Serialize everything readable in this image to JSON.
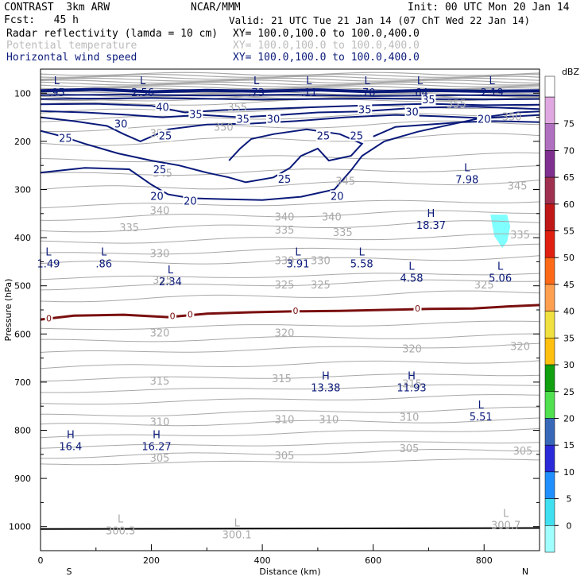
{
  "header": {
    "left1": "CONTRAST  3km ARW",
    "left2": "Fcst:   45 h",
    "center1": "NCAR/MMM",
    "right1": "Init: 00 UTC Mon 20 Jan 14",
    "valid": "Valid: 21 UTC Tue 21 Jan 14 (07 ChT Wed 22 Jan 14)",
    "fields": [
      {
        "name": "Radar reflectivity (lamda = 10 cm)",
        "xy": "XY= 100.0,100.0 to 100.0,400.0",
        "color": "#000000"
      },
      {
        "name": "Potential temperature",
        "xy": "XY= 100.0,100.0 to 100.0,400.0",
        "color": "#bbbbbb"
      },
      {
        "name": "Horizontal wind speed",
        "xy": "XY= 100.0,100.0 to 100.0,400.0",
        "color": "#0a1a7a"
      }
    ]
  },
  "colors": {
    "theta": "#a8a8a8",
    "wind": "#0a1a7a",
    "zero_line": "#7a0f0f",
    "echo": "#80ffff"
  },
  "chart_data": {
    "type": "contour-cross-section",
    "xlabel": "Distance (km)",
    "ylabel": "Pressure (hPa)",
    "xlim": [
      0,
      900
    ],
    "ylim": [
      1050,
      50
    ],
    "xticks": [
      "0",
      "200",
      "400",
      "600",
      "800"
    ],
    "yticks": [
      "100",
      "200",
      "300",
      "400",
      "500",
      "600",
      "700",
      "800",
      "900",
      "1000"
    ],
    "x_end_labels": {
      "left": "S",
      "right": "N"
    },
    "potential_temperature": {
      "label_annotations": [
        {
          "text": "350",
          "x": 330,
          "p": 170
        },
        {
          "text": "350",
          "x": 215,
          "p": 183
        },
        {
          "text": "350",
          "x": 850,
          "p": 148
        },
        {
          "text": "355",
          "x": 355,
          "p": 128
        },
        {
          "text": "355",
          "x": 750,
          "p": 122
        },
        {
          "text": "345",
          "x": 220,
          "p": 265
        },
        {
          "text": "345",
          "x": 550,
          "p": 282
        },
        {
          "text": "345",
          "x": 860,
          "p": 292
        },
        {
          "text": "340",
          "x": 215,
          "p": 343
        },
        {
          "text": "340",
          "x": 440,
          "p": 356
        },
        {
          "text": "340",
          "x": 525,
          "p": 356
        },
        {
          "text": "335",
          "x": 160,
          "p": 378
        },
        {
          "text": "335",
          "x": 440,
          "p": 383
        },
        {
          "text": "335",
          "x": 545,
          "p": 388
        },
        {
          "text": "335",
          "x": 865,
          "p": 393
        },
        {
          "text": "330",
          "x": 215,
          "p": 432
        },
        {
          "text": "330",
          "x": 440,
          "p": 447
        },
        {
          "text": "330",
          "x": 505,
          "p": 447
        },
        {
          "text": "325",
          "x": 220,
          "p": 487
        },
        {
          "text": "325",
          "x": 440,
          "p": 497
        },
        {
          "text": "325",
          "x": 505,
          "p": 497
        },
        {
          "text": "325",
          "x": 800,
          "p": 497
        },
        {
          "text": "320",
          "x": 215,
          "p": 597
        },
        {
          "text": "320",
          "x": 440,
          "p": 597
        },
        {
          "text": "320",
          "x": 670,
          "p": 630
        },
        {
          "text": "320",
          "x": 865,
          "p": 625
        },
        {
          "text": "315",
          "x": 215,
          "p": 697
        },
        {
          "text": "315",
          "x": 435,
          "p": 692
        },
        {
          "text": "315",
          "x": 670,
          "p": 703
        },
        {
          "text": "310",
          "x": 215,
          "p": 782
        },
        {
          "text": "310",
          "x": 440,
          "p": 777
        },
        {
          "text": "310",
          "x": 520,
          "p": 777
        },
        {
          "text": "310",
          "x": 665,
          "p": 772
        },
        {
          "text": "305",
          "x": 215,
          "p": 857
        },
        {
          "text": "305",
          "x": 440,
          "p": 852
        },
        {
          "text": "305",
          "x": 665,
          "p": 837
        },
        {
          "text": "305",
          "x": 870,
          "p": 842
        }
      ]
    },
    "wind_speed": {
      "label_annotations": [
        {
          "text": "40",
          "x": 220,
          "p": 128
        },
        {
          "text": "35",
          "x": 280,
          "p": 143
        },
        {
          "text": "35",
          "x": 365,
          "p": 153
        },
        {
          "text": "35",
          "x": 585,
          "p": 133
        },
        {
          "text": "35",
          "x": 700,
          "p": 113
        },
        {
          "text": "30",
          "x": 145,
          "p": 163
        },
        {
          "text": "30",
          "x": 420,
          "p": 153
        },
        {
          "text": "30",
          "x": 670,
          "p": 138
        },
        {
          "text": "25",
          "x": 45,
          "p": 193
        },
        {
          "text": "25",
          "x": 225,
          "p": 188
        },
        {
          "text": "25",
          "x": 215,
          "p": 258
        },
        {
          "text": "25",
          "x": 510,
          "p": 188
        },
        {
          "text": "25",
          "x": 570,
          "p": 188
        },
        {
          "text": "25",
          "x": 440,
          "p": 278
        },
        {
          "text": "20",
          "x": 210,
          "p": 313
        },
        {
          "text": "20",
          "x": 270,
          "p": 323
        },
        {
          "text": "20",
          "x": 535,
          "p": 313
        },
        {
          "text": "20",
          "x": 800,
          "p": 153
        }
      ]
    },
    "zero_line_labels": [
      {
        "text": "0",
        "x": 15,
        "p": 567
      },
      {
        "text": "0",
        "x": 238,
        "p": 562
      },
      {
        "text": "0",
        "x": 270,
        "p": 559
      },
      {
        "text": "0",
        "x": 460,
        "p": 552
      },
      {
        "text": "0",
        "x": 680,
        "p": 547
      }
    ],
    "extrema": [
      {
        "kind": "L",
        "value": ".95",
        "x": 35,
        "p": 85
      },
      {
        "kind": "L",
        "value": "2.56",
        "x": 190,
        "p": 85
      },
      {
        "kind": "L",
        "value": ".73",
        "x": 395,
        "p": 85
      },
      {
        "kind": "L",
        "value": ".11",
        "x": 490,
        "p": 85
      },
      {
        "kind": "L",
        "value": ".70",
        "x": 595,
        "p": 85
      },
      {
        "kind": "L",
        "value": ".64",
        "x": 690,
        "p": 85
      },
      {
        "kind": "L",
        "value": "2.19",
        "x": 820,
        "p": 85
      },
      {
        "kind": "L",
        "value": "7.98",
        "x": 775,
        "p": 265
      },
      {
        "kind": "H",
        "value": "18.37",
        "x": 710,
        "p": 360
      },
      {
        "kind": "L",
        "value": "1.49",
        "x": 20,
        "p": 440
      },
      {
        "kind": "L",
        "value": ".86",
        "x": 120,
        "p": 440
      },
      {
        "kind": "L",
        "value": "2.34",
        "x": 240,
        "p": 477
      },
      {
        "kind": "L",
        "value": "3.91",
        "x": 470,
        "p": 440
      },
      {
        "kind": "L",
        "value": "5.58",
        "x": 585,
        "p": 440
      },
      {
        "kind": "L",
        "value": "4.58",
        "x": 675,
        "p": 470
      },
      {
        "kind": "L",
        "value": "5.06",
        "x": 835,
        "p": 470
      },
      {
        "kind": "H",
        "value": "13.38",
        "x": 520,
        "p": 698
      },
      {
        "kind": "H",
        "value": "11.93",
        "x": 675,
        "p": 698
      },
      {
        "kind": "L",
        "value": "5.51",
        "x": 800,
        "p": 758
      },
      {
        "kind": "H",
        "value": "16.4",
        "x": 60,
        "p": 820
      },
      {
        "kind": "H",
        "value": "16.27",
        "x": 215,
        "p": 820
      },
      {
        "kind": "L",
        "value": "300.3",
        "x": 150,
        "p": 995,
        "grey": true
      },
      {
        "kind": "L",
        "value": "300.1",
        "x": 360,
        "p": 1003,
        "grey": true
      },
      {
        "kind": "L",
        "value": "300.7",
        "x": 845,
        "p": 983,
        "grey": true
      }
    ],
    "reflectivity_echo": {
      "x_center": 830,
      "p_center": 372,
      "label": "dBZ"
    },
    "colorbar": {
      "title": "dBZ",
      "levels": [
        "75",
        "70",
        "65",
        "60",
        "55",
        "50",
        "45",
        "40",
        "35",
        "30",
        "25",
        "20",
        "15",
        "10",
        "5",
        "0"
      ],
      "colors": [
        "#e0a8e0",
        "#b070c0",
        "#803090",
        "#a03050",
        "#c01818",
        "#e02010",
        "#ff6a18",
        "#ffa050",
        "#f0e040",
        "#ffc010",
        "#10a010",
        "#50e050",
        "#3868b8",
        "#2a2ad8",
        "#2090ff",
        "#40e0f0",
        "#a0ffff"
      ]
    }
  }
}
